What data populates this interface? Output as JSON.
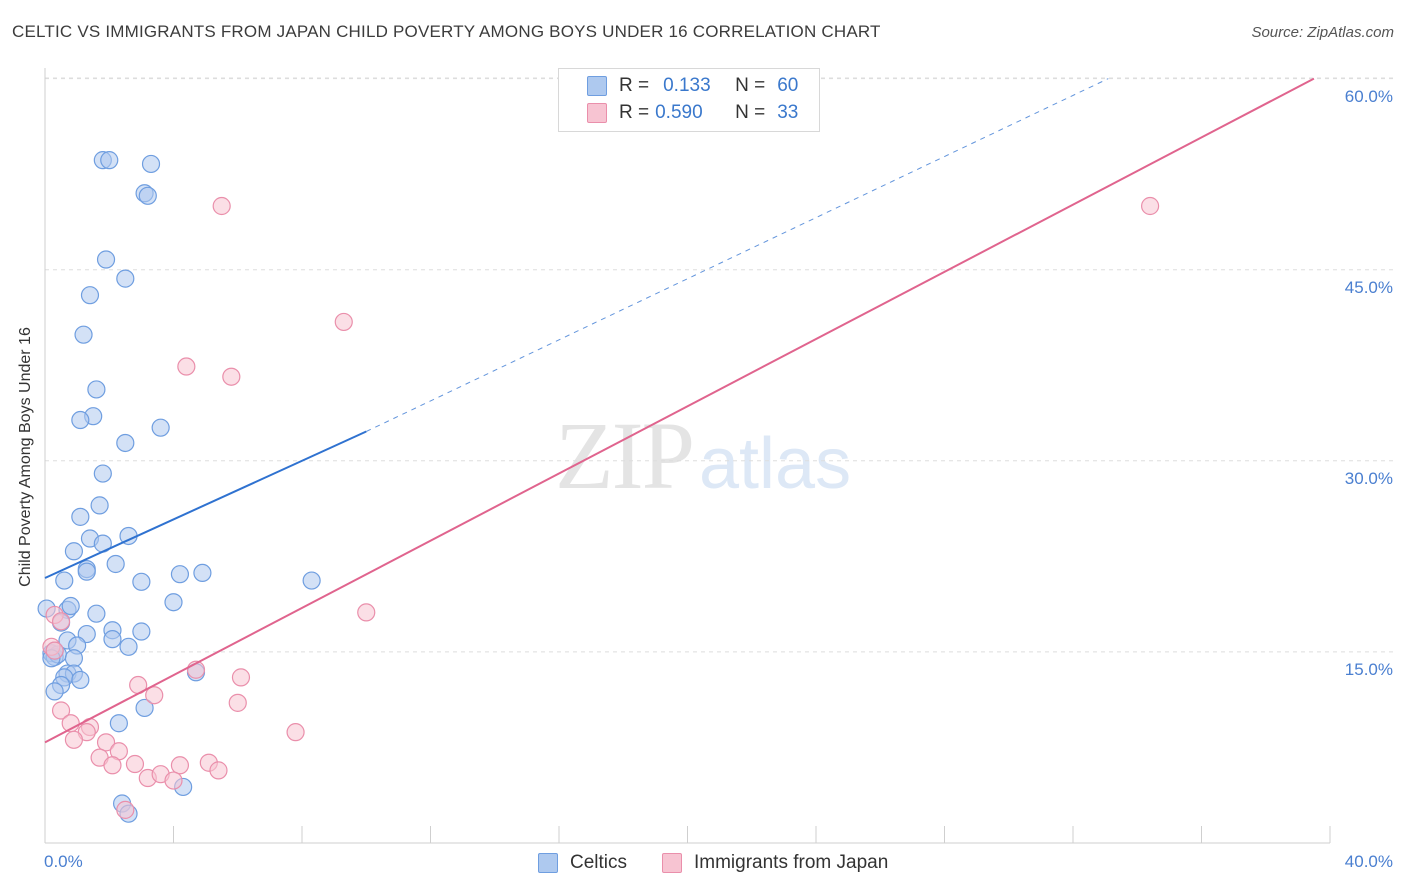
{
  "title": "CELTIC VS IMMIGRANTS FROM JAPAN CHILD POVERTY AMONG BOYS UNDER 16 CORRELATION CHART",
  "source": "Source: ZipAtlas.com",
  "watermark": {
    "zip": "ZIP",
    "atlas": "atlas"
  },
  "legend": {
    "rows": [
      {
        "r_key": "R =",
        "r_val": "0.133",
        "n_key": "N =",
        "n_val": "60"
      },
      {
        "r_key": "R =",
        "r_val": "0.590",
        "n_key": "N =",
        "n_val": "33"
      }
    ]
  },
  "colors": {
    "celtic_fill": "#aec9ef",
    "celtic_stroke": "#6f9ee0",
    "celtic_line": "#2f72d0",
    "japan_fill": "#f7c4d2",
    "japan_stroke": "#ea8fab",
    "japan_line": "#e0648e",
    "grid": "#dddddd",
    "axis_text": "#4a7fd0"
  },
  "chart_data": {
    "type": "scatter",
    "title": "CELTIC VS IMMIGRANTS FROM JAPAN CHILD POVERTY AMONG BOYS UNDER 16 CORRELATION CHART",
    "xlabel": "",
    "ylabel": "Child Poverty Among Boys Under 16",
    "xlim": [
      0,
      40
    ],
    "ylim": [
      0,
      60
    ],
    "x_tick_labels": [
      "0.0%",
      "40.0%"
    ],
    "y_ticks": [
      15,
      30,
      45,
      60
    ],
    "y_tick_labels": [
      "15.0%",
      "30.0%",
      "45.0%",
      "60.0%"
    ],
    "grid": true,
    "legend_position": "top-center",
    "series": [
      {
        "name": "Celtics",
        "r": 0.133,
        "n": 60,
        "points": [
          [
            1.8,
            53.6
          ],
          [
            2.0,
            53.6
          ],
          [
            3.3,
            53.3
          ],
          [
            3.1,
            51.0
          ],
          [
            3.2,
            50.8
          ],
          [
            1.9,
            45.8
          ],
          [
            2.5,
            44.3
          ],
          [
            1.4,
            43.0
          ],
          [
            1.2,
            39.9
          ],
          [
            1.6,
            35.6
          ],
          [
            1.5,
            33.5
          ],
          [
            1.1,
            33.2
          ],
          [
            2.5,
            31.4
          ],
          [
            3.6,
            32.6
          ],
          [
            1.8,
            29.0
          ],
          [
            1.7,
            26.5
          ],
          [
            1.1,
            25.6
          ],
          [
            1.4,
            23.9
          ],
          [
            1.8,
            23.5
          ],
          [
            2.6,
            24.1
          ],
          [
            0.9,
            22.9
          ],
          [
            1.3,
            21.5
          ],
          [
            1.3,
            21.3
          ],
          [
            2.2,
            21.9
          ],
          [
            0.6,
            20.6
          ],
          [
            3.0,
            20.5
          ],
          [
            4.2,
            21.1
          ],
          [
            4.9,
            21.2
          ],
          [
            8.3,
            20.6
          ],
          [
            4.0,
            18.9
          ],
          [
            0.7,
            18.3
          ],
          [
            0.8,
            18.6
          ],
          [
            1.6,
            18.0
          ],
          [
            0.5,
            17.3
          ],
          [
            2.1,
            16.7
          ],
          [
            3.0,
            16.6
          ],
          [
            1.3,
            16.4
          ],
          [
            0.7,
            15.9
          ],
          [
            2.1,
            16.0
          ],
          [
            2.6,
            15.4
          ],
          [
            1.0,
            15.5
          ],
          [
            0.2,
            14.9
          ],
          [
            0.3,
            14.6
          ],
          [
            0.4,
            14.8
          ],
          [
            0.9,
            14.5
          ],
          [
            0.7,
            13.3
          ],
          [
            0.9,
            13.3
          ],
          [
            0.6,
            13.0
          ],
          [
            1.1,
            12.8
          ],
          [
            0.5,
            12.4
          ],
          [
            0.3,
            11.9
          ],
          [
            4.7,
            13.4
          ],
          [
            3.1,
            10.6
          ],
          [
            2.3,
            9.4
          ],
          [
            2.4,
            3.1
          ],
          [
            2.6,
            2.3
          ],
          [
            4.3,
            4.4
          ],
          [
            0.05,
            18.4
          ],
          [
            0.3,
            15.1
          ],
          [
            0.2,
            14.5
          ]
        ]
      },
      {
        "name": "Immigrants from Japan",
        "r": 0.59,
        "n": 33,
        "points": [
          [
            5.5,
            50.0
          ],
          [
            34.4,
            50.0
          ],
          [
            9.3,
            40.9
          ],
          [
            4.4,
            37.4
          ],
          [
            5.8,
            36.6
          ],
          [
            10.0,
            18.1
          ],
          [
            0.3,
            17.9
          ],
          [
            0.5,
            17.4
          ],
          [
            0.2,
            15.4
          ],
          [
            0.3,
            15.1
          ],
          [
            4.7,
            13.6
          ],
          [
            6.1,
            13.0
          ],
          [
            2.9,
            12.4
          ],
          [
            3.4,
            11.6
          ],
          [
            6.0,
            11.0
          ],
          [
            0.5,
            10.4
          ],
          [
            0.8,
            9.4
          ],
          [
            1.4,
            9.1
          ],
          [
            7.8,
            8.7
          ],
          [
            1.3,
            8.7
          ],
          [
            0.9,
            8.1
          ],
          [
            1.9,
            7.9
          ],
          [
            2.3,
            7.2
          ],
          [
            1.7,
            6.7
          ],
          [
            2.1,
            6.1
          ],
          [
            2.8,
            6.2
          ],
          [
            4.2,
            6.1
          ],
          [
            5.1,
            6.3
          ],
          [
            3.2,
            5.1
          ],
          [
            3.6,
            5.4
          ],
          [
            4.0,
            4.9
          ],
          [
            5.4,
            5.7
          ],
          [
            2.5,
            2.6
          ]
        ]
      }
    ],
    "trendlines": [
      {
        "series": "Celtics",
        "x": [
          0,
          10
        ],
        "y": [
          20.8,
          32.3
        ],
        "dashed_extension_to": [
          33.1,
          60
        ]
      },
      {
        "series": "Immigrants from Japan",
        "x": [
          0,
          39.5
        ],
        "y": [
          7.9,
          60
        ]
      }
    ]
  },
  "bottom_legend": [
    {
      "label": "Celtics"
    },
    {
      "label": "Immigrants from Japan"
    }
  ]
}
